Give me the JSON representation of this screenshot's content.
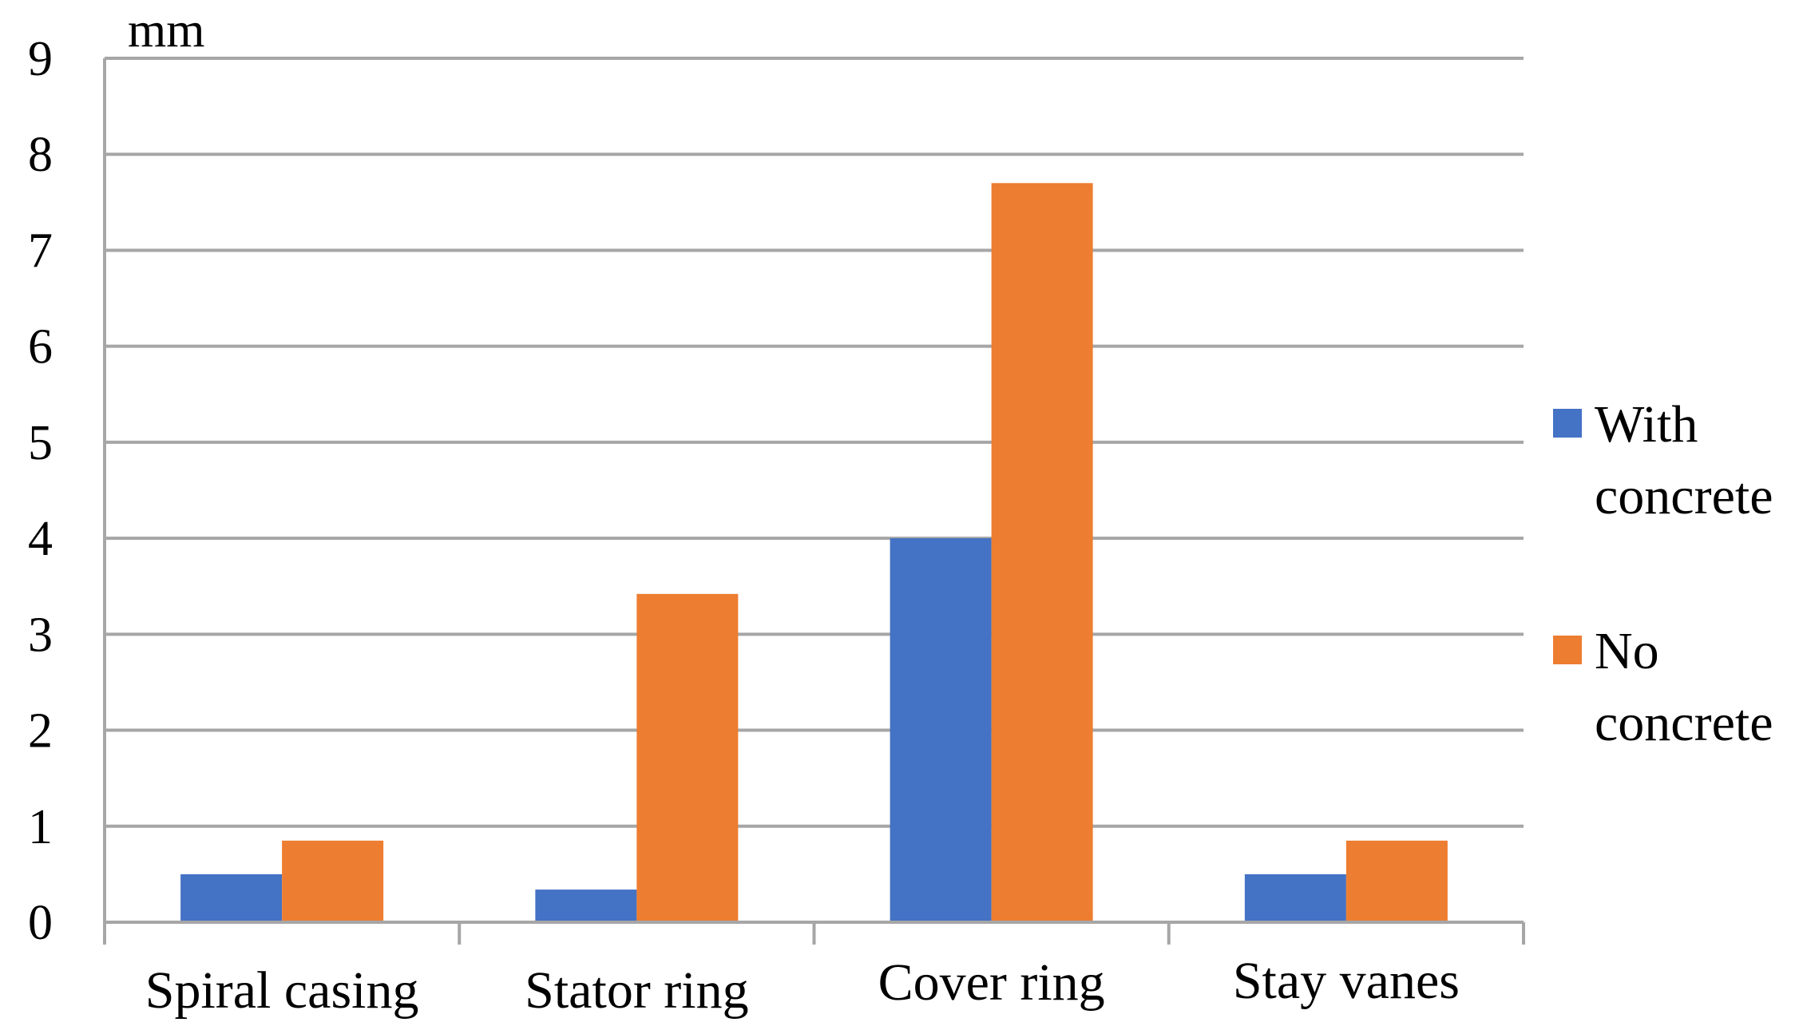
{
  "chart_data": {
    "type": "bar",
    "unit_label": "mm",
    "categories": [
      "Spiral casing",
      "Stator ring",
      "Cover ring",
      "Stay vanes"
    ],
    "series": [
      {
        "name_lines": [
          "With",
          "concrete"
        ],
        "color": "#4472C4",
        "values": [
          0.5,
          0.34,
          4.0,
          0.5
        ]
      },
      {
        "name_lines": [
          "No",
          "concrete"
        ],
        "color": "#ED7D31",
        "values": [
          0.85,
          3.42,
          7.7,
          0.85
        ]
      }
    ],
    "yticks": [
      "0",
      "1",
      "2",
      "3",
      "4",
      "5",
      "6",
      "7",
      "8",
      "9"
    ],
    "ylim": [
      0,
      9
    ],
    "grid": true,
    "gridline_color": "#A6A6A6",
    "legend_position": "right"
  }
}
